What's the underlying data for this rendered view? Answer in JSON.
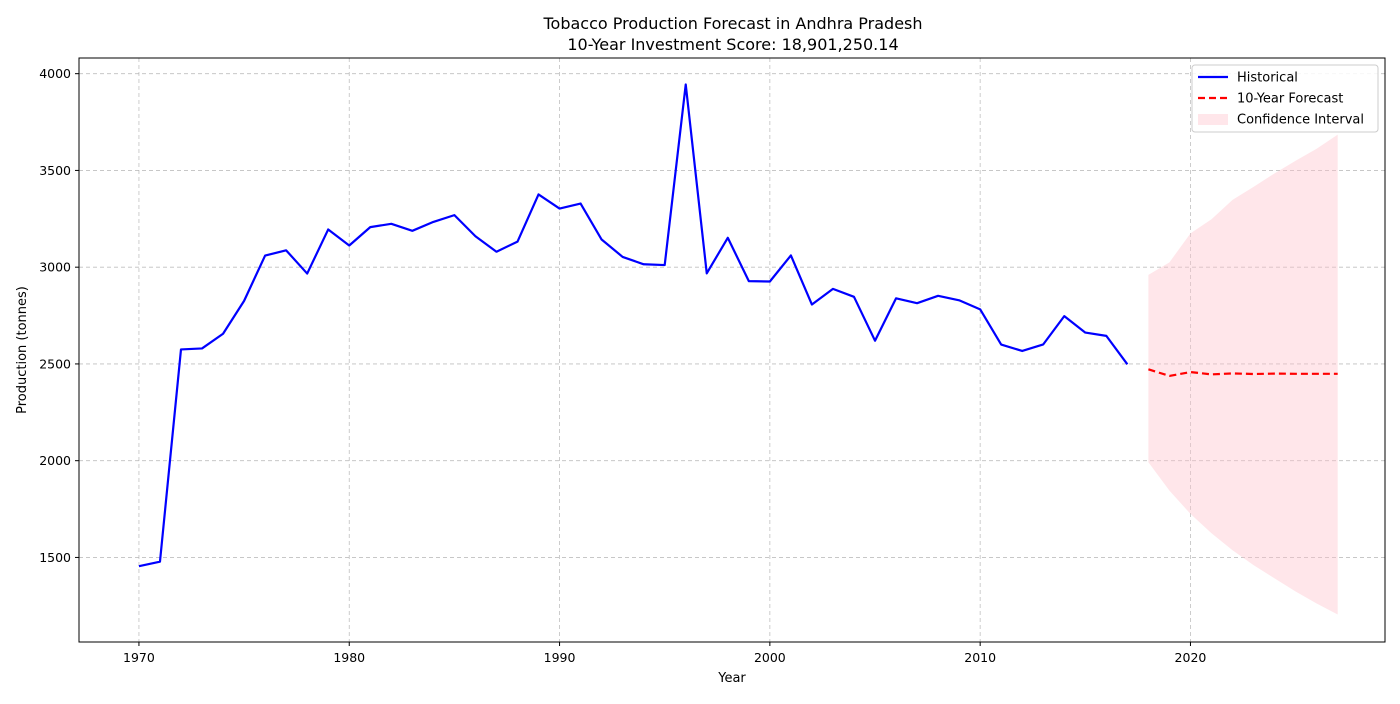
{
  "chart_data": {
    "type": "line",
    "title": "Tobacco Production Forecast in Andhra Pradesh",
    "subtitle": "10-Year Investment Score: 18,901,250.14",
    "xlabel": "Year",
    "ylabel": "Production (tonnes)",
    "xlim": [
      1967.15,
      2029.25
    ],
    "ylim": [
      1063,
      4081
    ],
    "xticks": [
      1970,
      1980,
      1990,
      2000,
      2010,
      2020
    ],
    "yticks": [
      1500,
      2000,
      2500,
      3000,
      3500,
      4000
    ],
    "grid": true,
    "legend_position": "top-right",
    "series": [
      {
        "name": "Historical",
        "style": "solid",
        "color": "#0000ff",
        "x": [
          1970,
          1971,
          1972,
          1973,
          1974,
          1975,
          1976,
          1977,
          1978,
          1979,
          1980,
          1981,
          1982,
          1983,
          1984,
          1985,
          1986,
          1987,
          1988,
          1989,
          1990,
          1991,
          1992,
          1993,
          1994,
          1995,
          1996,
          1997,
          1998,
          1999,
          2000,
          2001,
          2002,
          2003,
          2004,
          2005,
          2006,
          2007,
          2008,
          2009,
          2010,
          2011,
          2012,
          2013,
          2014,
          2015,
          2016,
          2017
        ],
        "values": [
          1455,
          1478,
          2575,
          2580,
          2656,
          2826,
          3060,
          3087,
          2967,
          3195,
          3112,
          3207,
          3224,
          3188,
          3234,
          3269,
          3160,
          3080,
          3132,
          3376,
          3303,
          3329,
          3143,
          3053,
          3015,
          3011,
          3944,
          2968,
          3152,
          2928,
          2926,
          3061,
          2807,
          2888,
          2847,
          2620,
          2839,
          2814,
          2852,
          2829,
          2782,
          2600,
          2567,
          2601,
          2747,
          2662,
          2645,
          2498
        ]
      },
      {
        "name": "10-Year Forecast",
        "style": "dashed",
        "color": "#ff0000",
        "x": [
          2018,
          2019,
          2020,
          2021,
          2022,
          2023,
          2024,
          2025,
          2026,
          2027
        ],
        "values": [
          2472,
          2438,
          2458,
          2446,
          2451,
          2448,
          2450,
          2449,
          2449,
          2449
        ]
      }
    ],
    "confidence_interval": {
      "name": "Confidence Interval",
      "color": "#ffc0cb",
      "x": [
        2018,
        2019,
        2020,
        2021,
        2022,
        2023,
        2024,
        2025,
        2026,
        2027
      ],
      "lower": [
        1992,
        1845,
        1725,
        1625,
        1537,
        1460,
        1392,
        1324,
        1262,
        1205
      ],
      "upper": [
        2960,
        3025,
        3175,
        3248,
        3348,
        3415,
        3485,
        3550,
        3612,
        3685
      ]
    }
  }
}
